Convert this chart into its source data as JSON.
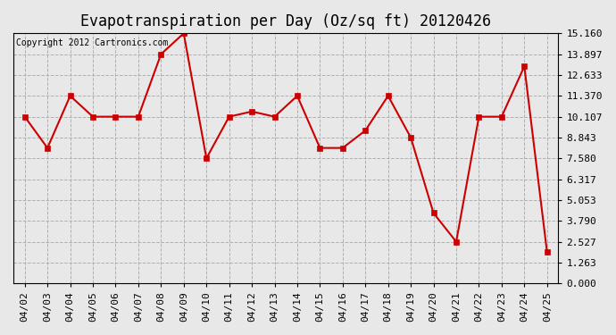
{
  "title": "Evapotranspiration per Day (Oz/sq ft) 20120426",
  "copyright": "Copyright 2012 Cartronics.com",
  "x_labels": [
    "04/02",
    "04/03",
    "04/04",
    "04/05",
    "04/06",
    "04/07",
    "04/08",
    "04/09",
    "04/10",
    "04/11",
    "04/12",
    "04/13",
    "04/14",
    "04/15",
    "04/16",
    "04/17",
    "04/18",
    "04/19",
    "04/20",
    "04/21",
    "04/22",
    "04/23",
    "04/24",
    "04/25"
  ],
  "y_values": [
    10.107,
    8.211,
    11.37,
    10.107,
    10.107,
    10.107,
    13.897,
    15.16,
    7.58,
    10.107,
    10.422,
    10.107,
    11.37,
    8.211,
    8.211,
    9.27,
    11.37,
    8.843,
    4.264,
    2.527,
    10.107,
    10.107,
    13.16,
    1.895
  ],
  "line_color": "#cc0000",
  "marker_size": 4,
  "background_color": "#e8e8e8",
  "grid_color": "#aaaaaa",
  "ylim": [
    0,
    15.16
  ],
  "yticks": [
    0.0,
    1.263,
    2.527,
    3.79,
    5.053,
    6.317,
    7.58,
    8.843,
    10.107,
    11.37,
    12.633,
    13.897,
    15.16
  ],
  "title_fontsize": 12,
  "copyright_fontsize": 7,
  "tick_fontsize": 8
}
